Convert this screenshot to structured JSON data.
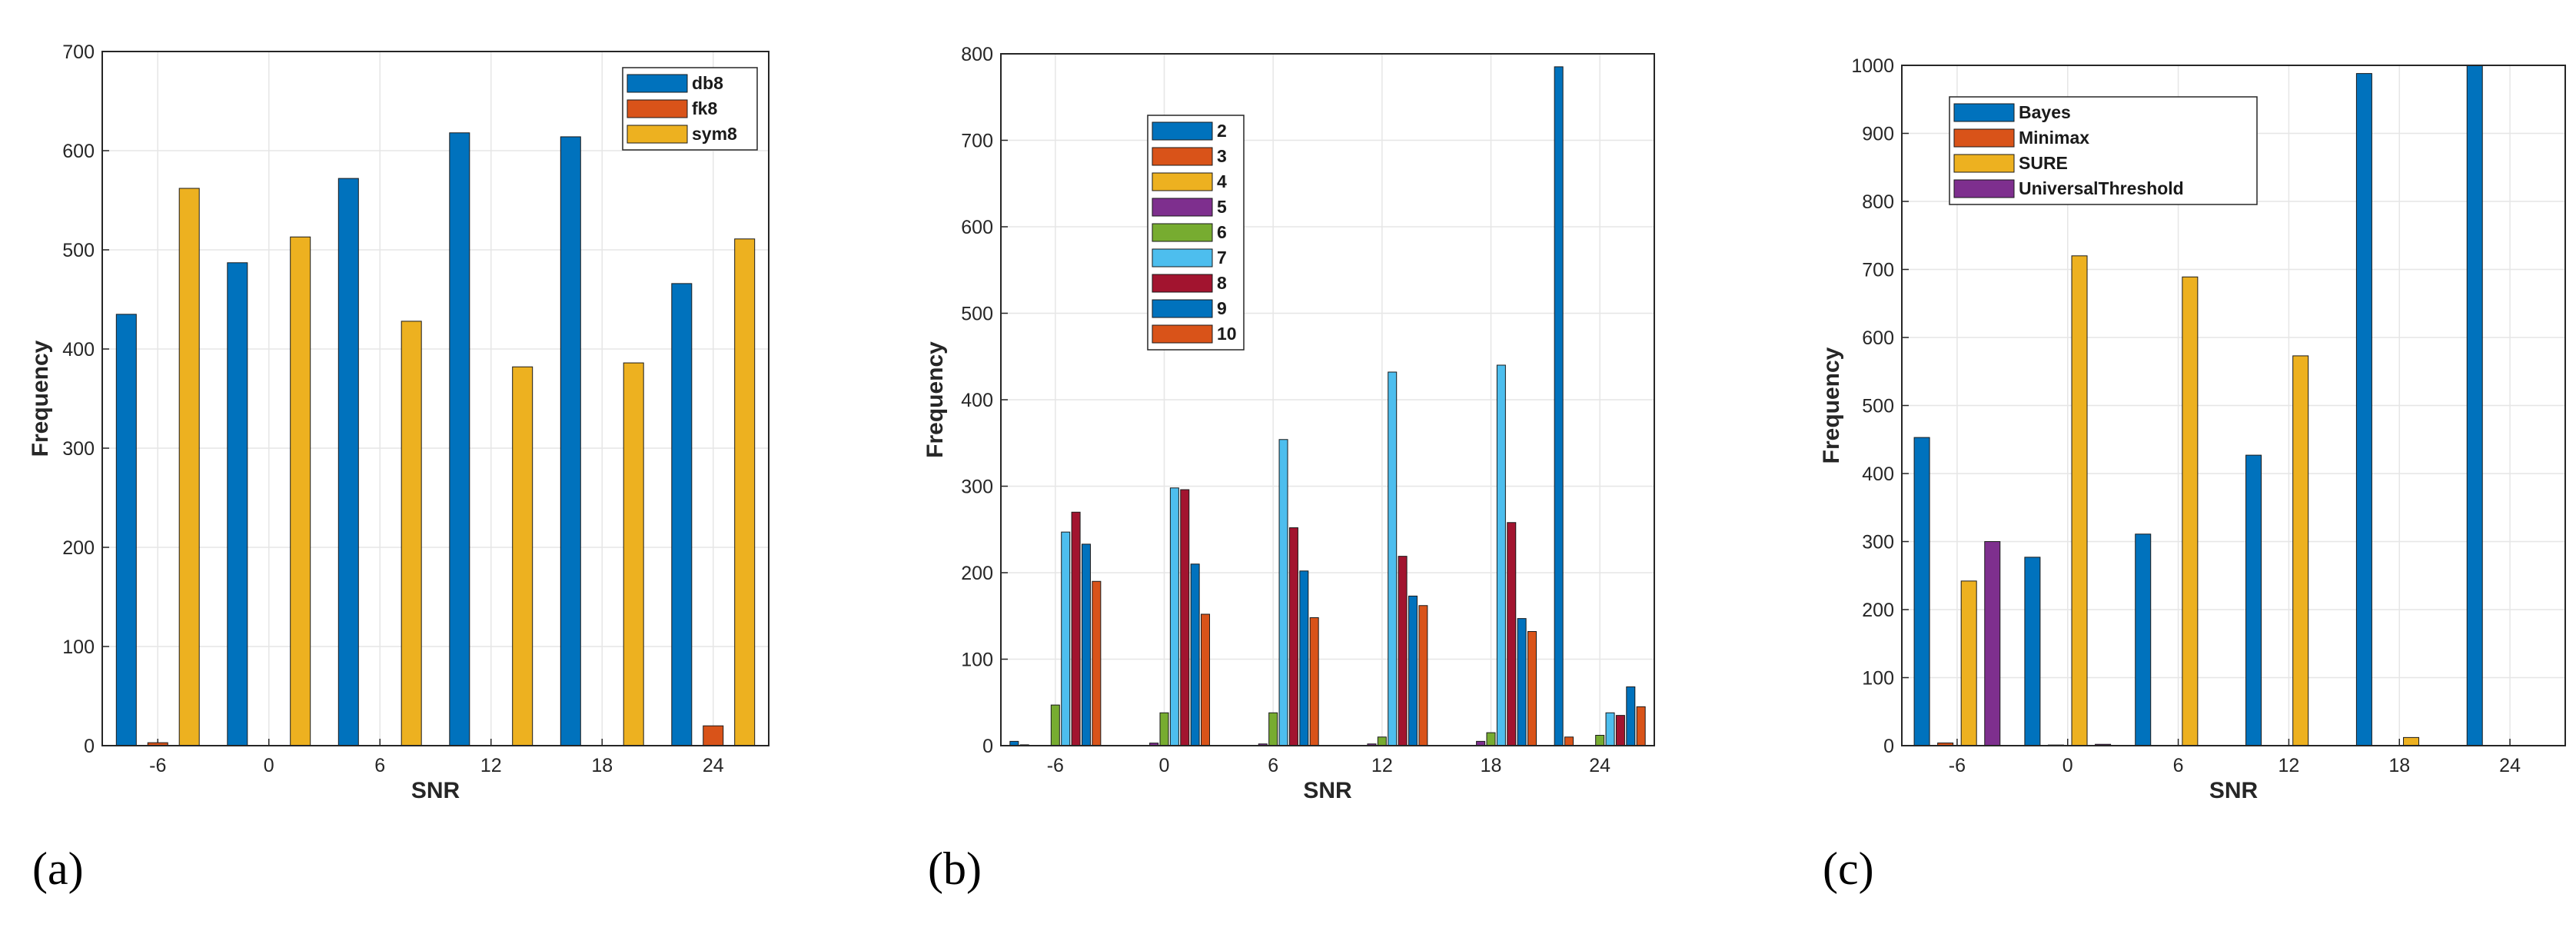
{
  "colors": {
    "blue": "#0072BD",
    "orange": "#D95319",
    "yellow": "#EDB120",
    "purple": "#7E2F8E",
    "green": "#77AC30",
    "lightblue": "#4DBEEE",
    "darkred": "#A2142F"
  },
  "chart_data": [
    {
      "type": "bar",
      "panel_label": "(a)",
      "title": "",
      "xlabel": "SNR",
      "ylabel": "Frequency",
      "categories": [
        "-6",
        "0",
        "6",
        "12",
        "18",
        "24"
      ],
      "ylim": [
        0,
        700
      ],
      "yticks": [
        "0",
        "100",
        "200",
        "300",
        "400",
        "500",
        "600",
        "700"
      ],
      "grid": true,
      "legend_position": "top-right",
      "series": [
        {
          "name": "db8",
          "color": "#0072BD",
          "values": [
            435,
            487,
            572,
            618,
            614,
            466
          ]
        },
        {
          "name": "fk8",
          "color": "#D95319",
          "values": [
            3,
            0,
            0,
            0,
            0,
            20
          ]
        },
        {
          "name": "sym8",
          "color": "#EDB120",
          "values": [
            562,
            513,
            428,
            382,
            386,
            511
          ]
        }
      ]
    },
    {
      "type": "bar",
      "panel_label": "(b)",
      "title": "",
      "xlabel": "SNR",
      "ylabel": "Frequency",
      "categories": [
        "-6",
        "0",
        "6",
        "12",
        "18",
        "24"
      ],
      "ylim": [
        0,
        800
      ],
      "yticks": [
        "0",
        "100",
        "200",
        "300",
        "400",
        "500",
        "600",
        "700",
        "800"
      ],
      "grid": true,
      "legend_position": "top-left",
      "series": [
        {
          "name": "2",
          "color": "#0072BD",
          "values": [
            5,
            0,
            0,
            0,
            0,
            785
          ]
        },
        {
          "name": "3",
          "color": "#D95319",
          "values": [
            1,
            0,
            0,
            0,
            0,
            10
          ]
        },
        {
          "name": "4",
          "color": "#EDB120",
          "values": [
            0,
            0,
            0,
            0,
            0,
            0
          ]
        },
        {
          "name": "5",
          "color": "#7E2F8E",
          "values": [
            0,
            3,
            2,
            2,
            5,
            0
          ]
        },
        {
          "name": "6",
          "color": "#77AC30",
          "values": [
            47,
            38,
            38,
            10,
            15,
            12
          ]
        },
        {
          "name": "7",
          "color": "#4DBEEE",
          "values": [
            247,
            298,
            354,
            432,
            440,
            38
          ]
        },
        {
          "name": "8",
          "color": "#A2142F",
          "values": [
            270,
            296,
            252,
            219,
            258,
            35
          ]
        },
        {
          "name": "9",
          "color": "#0072BD",
          "values": [
            233,
            210,
            202,
            173,
            147,
            68
          ]
        },
        {
          "name": "10",
          "color": "#D95319",
          "values": [
            190,
            152,
            148,
            162,
            132,
            45
          ]
        }
      ]
    },
    {
      "type": "bar",
      "panel_label": "(c)",
      "title": "",
      "xlabel": "SNR",
      "ylabel": "Frequency",
      "categories": [
        "-6",
        "0",
        "6",
        "12",
        "18",
        "24"
      ],
      "ylim": [
        0,
        1000
      ],
      "yticks": [
        "0",
        "100",
        "200",
        "300",
        "400",
        "500",
        "600",
        "700",
        "800",
        "900",
        "1000"
      ],
      "grid": true,
      "legend_position": "top-left",
      "series": [
        {
          "name": "Bayes",
          "color": "#0072BD",
          "values": [
            453,
            277,
            311,
            427,
            988,
            1000
          ]
        },
        {
          "name": "Minimax",
          "color": "#D95319",
          "values": [
            4,
            1,
            0,
            0,
            0,
            0
          ]
        },
        {
          "name": "SURE",
          "color": "#EDB120",
          "values": [
            242,
            720,
            689,
            573,
            12,
            0
          ]
        },
        {
          "name": "UniversalThreshold",
          "color": "#7E2F8E",
          "values": [
            300,
            2,
            0,
            0,
            0,
            0
          ]
        }
      ]
    }
  ]
}
